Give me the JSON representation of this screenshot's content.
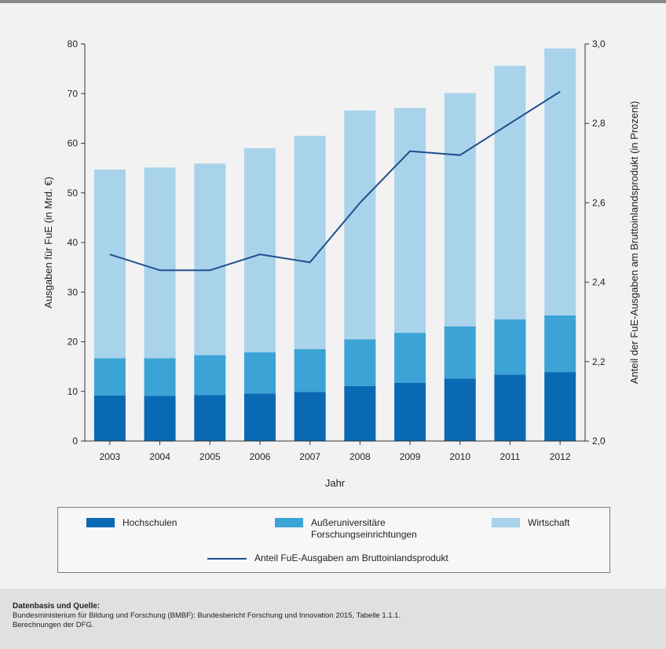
{
  "colors": {
    "hochschulen": "#0a69b3",
    "ausseruniversitaer": "#3ba3d6",
    "wirtschaft": "#a8d3ea",
    "line": "#1f4e8c"
  },
  "legend": {
    "hochschulen": "Hochschulen",
    "ausseruniversitaer_line1": "Außeruniversitäre",
    "ausseruniversitaer_line2": "Forschungseinrichtungen",
    "wirtschaft": "Wirtschaft",
    "anteil": "Anteil FuE-Ausgaben am Bruttoinlandsprodukt"
  },
  "source": {
    "heading": "Datenbasis und Quelle:",
    "line1": "Bundesministerium für Bildung und Forschung (BMBF): Bundesbericht Forschung und Innovation 2015, Tabelle 1.1.1.",
    "line2": "Berechnungen der DFG."
  },
  "chart_data": {
    "type": "bar",
    "stacked": true,
    "categories": [
      "2003",
      "2004",
      "2005",
      "2006",
      "2007",
      "2008",
      "2009",
      "2010",
      "2011",
      "2012"
    ],
    "xlabel": "Jahr",
    "ylabel": "Ausgaben für FuE (in Mrd. €)",
    "y2label": "Anteil der FuE-Ausgaben am Bruttoinlandsprodukt (in Prozent)",
    "ylim": [
      0,
      80
    ],
    "yticks": [
      "0",
      "10",
      "20",
      "30",
      "40",
      "50",
      "60",
      "70",
      "80"
    ],
    "y2lim": [
      2.0,
      3.0
    ],
    "y2ticks": [
      "2,0",
      "2,2",
      "2,4",
      "2,6",
      "2,8",
      "3,0"
    ],
    "series": [
      {
        "name": "Hochschulen",
        "values": [
          9.2,
          9.1,
          9.3,
          9.6,
          9.9,
          11.1,
          11.7,
          12.6,
          13.4,
          13.9
        ]
      },
      {
        "name": "Außeruniversitäre Forschungseinrichtungen",
        "values": [
          7.5,
          7.6,
          8.0,
          8.3,
          8.6,
          9.4,
          10.1,
          10.5,
          11.1,
          11.4
        ]
      },
      {
        "name": "Wirtschaft",
        "values": [
          38.0,
          38.4,
          38.6,
          41.1,
          43.0,
          46.1,
          45.3,
          47.0,
          51.1,
          53.8
        ]
      }
    ],
    "line_series": {
      "name": "Anteil FuE-Ausgaben am Bruttoinlandsprodukt",
      "axis": "right",
      "values": [
        2.47,
        2.43,
        2.43,
        2.47,
        2.45,
        2.6,
        2.73,
        2.72,
        2.8,
        2.88
      ]
    },
    "grid": false,
    "legend_position": "bottom"
  }
}
